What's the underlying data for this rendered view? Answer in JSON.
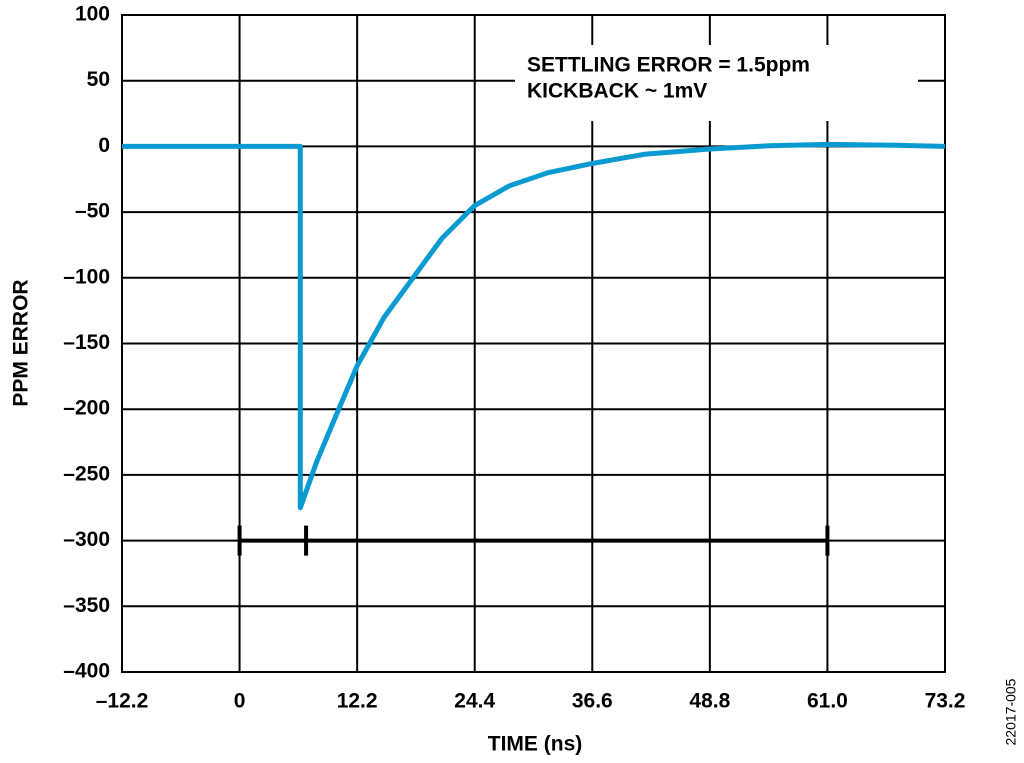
{
  "chart_data": {
    "type": "line",
    "x_label": "TIME (ns)",
    "y_label": "PPM ERROR",
    "x": [
      -12.2,
      6.3,
      6.3,
      8,
      10,
      12.2,
      15,
      18,
      21,
      24.4,
      28,
      32,
      36.6,
      42,
      48.8,
      55,
      61,
      67,
      73.2
    ],
    "series": [
      {
        "color": "#0a9ad2",
        "values": [
          0,
          0,
          -275,
          -240,
          -205,
          -167,
          -130,
          -100,
          -70,
          -45,
          -30,
          -20,
          -13,
          -6,
          -2,
          0.5,
          1.5,
          1,
          0
        ]
      }
    ],
    "xlim": [
      -12.2,
      73.2
    ],
    "xticks": [
      {
        "value": -12.2,
        "label": "–12.2"
      },
      0,
      12.2,
      24.4,
      36.6,
      48.8,
      {
        "value": 61,
        "label": "61.0"
      },
      73.2
    ],
    "ylim": [
      -400,
      100
    ],
    "yticks": [
      {
        "value": -400,
        "label": "–400"
      },
      {
        "value": -350,
        "label": "–350"
      },
      {
        "value": -300,
        "label": "–300"
      },
      {
        "value": -250,
        "label": "–250"
      },
      {
        "value": -200,
        "label": "–200"
      },
      {
        "value": -150,
        "label": "–150"
      },
      {
        "value": -100,
        "label": "–100"
      },
      {
        "value": -50,
        "label": "–50"
      },
      0,
      50,
      100
    ],
    "grid": true,
    "annotations": [
      "SETTLING ERROR = 1.5ppm",
      "KICKBACK ~ 1mV"
    ],
    "range_marker": {
      "y": -300,
      "x": [
        0,
        6.9,
        61
      ]
    },
    "figure_id": "22017-005"
  }
}
